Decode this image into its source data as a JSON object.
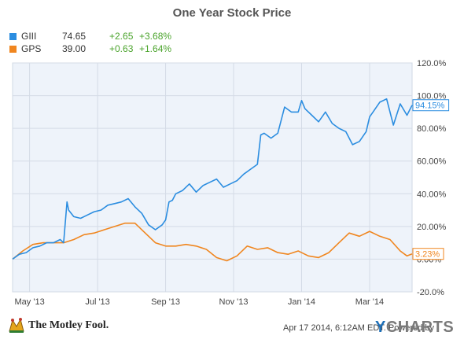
{
  "chart_data": {
    "type": "line",
    "title": "One Year Stock Price",
    "ylim": [
      -20,
      120
    ],
    "yticks": [
      "-20.0%",
      "0.00%",
      "20.00%",
      "40.00%",
      "60.00%",
      "80.00%",
      "100.0%",
      "120.0%"
    ],
    "ytick_values": [
      -20,
      0,
      20,
      40,
      60,
      80,
      100,
      120
    ],
    "x_tick_labels": [
      "May '13",
      "Jul '13",
      "Sep '13",
      "Nov '13",
      "Jan '14",
      "Mar '14"
    ],
    "x_tick_positions": [
      0.5,
      2.5,
      4.5,
      6.5,
      8.5,
      10.5
    ],
    "x_range": [
      0,
      11.75
    ],
    "grid": true,
    "series": [
      {
        "name": "GIII",
        "color": "#2b8de0",
        "end_label": "94.15%",
        "x": [
          0,
          0.2,
          0.4,
          0.6,
          0.8,
          1.0,
          1.2,
          1.4,
          1.5,
          1.6,
          1.65,
          1.8,
          2.0,
          2.2,
          2.4,
          2.6,
          2.8,
          3.0,
          3.2,
          3.4,
          3.6,
          3.8,
          4.0,
          4.2,
          4.4,
          4.5,
          4.6,
          4.7,
          4.8,
          5.0,
          5.2,
          5.4,
          5.6,
          5.8,
          6.0,
          6.2,
          6.4,
          6.6,
          6.8,
          7.0,
          7.2,
          7.3,
          7.4,
          7.6,
          7.8,
          8.0,
          8.2,
          8.4,
          8.5,
          8.6,
          8.8,
          9.0,
          9.2,
          9.4,
          9.6,
          9.8,
          10.0,
          10.2,
          10.4,
          10.5,
          10.6,
          10.8,
          11.0,
          11.2,
          11.4,
          11.6,
          11.75
        ],
        "values": [
          0,
          3,
          4,
          7,
          8,
          10,
          10,
          12,
          10,
          35,
          30,
          26,
          25,
          27,
          29,
          30,
          33,
          34,
          35,
          37,
          32,
          28,
          21,
          18,
          21,
          24,
          35,
          36,
          40,
          42,
          46,
          41,
          45,
          47,
          49,
          44,
          46,
          48,
          52,
          55,
          58,
          76,
          77,
          74,
          77,
          93,
          90,
          90,
          97,
          92,
          88,
          84,
          90,
          83,
          80,
          78,
          70,
          72,
          78,
          87,
          90,
          96,
          98,
          82,
          95,
          88,
          94.15
        ]
      },
      {
        "name": "GPS",
        "color": "#f0861f",
        "end_label": "3.23%",
        "x": [
          0,
          0.3,
          0.6,
          0.9,
          1.2,
          1.5,
          1.8,
          2.1,
          2.4,
          2.7,
          3.0,
          3.3,
          3.6,
          3.9,
          4.2,
          4.5,
          4.8,
          5.1,
          5.4,
          5.7,
          6.0,
          6.3,
          6.6,
          6.9,
          7.2,
          7.5,
          7.8,
          8.1,
          8.4,
          8.7,
          9.0,
          9.3,
          9.6,
          9.9,
          10.2,
          10.5,
          10.8,
          11.1,
          11.4,
          11.6,
          11.75
        ],
        "values": [
          0,
          5,
          9,
          10,
          10,
          10,
          12,
          15,
          16,
          18,
          20,
          22,
          22,
          16,
          10,
          8,
          8,
          9,
          8,
          6,
          1,
          -1,
          2,
          8,
          6,
          7,
          4,
          3,
          5,
          2,
          1,
          4,
          10,
          16,
          14,
          17,
          14,
          12,
          5,
          2,
          3.23
        ]
      }
    ]
  },
  "legend": [
    {
      "symbol": "GIII",
      "price": "74.65",
      "change": "+2.65",
      "pct": "+3.68%",
      "color": "#2b8de0"
    },
    {
      "symbol": "GPS",
      "price": "39.00",
      "change": "+0.63",
      "pct": "+1.64%",
      "color": "#f0861f"
    }
  ],
  "footer": {
    "date_text": "Apr 17 2014, 6:12AM EDT.  Powered by",
    "brand_y": "Y",
    "brand_rest": "CHARTS",
    "motley": "The Motley Fool."
  }
}
